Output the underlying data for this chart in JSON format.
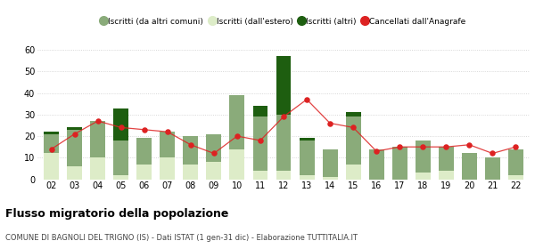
{
  "years": [
    "02",
    "03",
    "04",
    "05",
    "06",
    "07",
    "08",
    "09",
    "10",
    "11",
    "12",
    "13",
    "14",
    "15",
    "16",
    "17",
    "18",
    "19",
    "20",
    "21",
    "22"
  ],
  "iscritti_altri_comuni": [
    9,
    17,
    17,
    16,
    12,
    12,
    13,
    13,
    25,
    25,
    26,
    16,
    13,
    22,
    14,
    15,
    15,
    11,
    12,
    10,
    12
  ],
  "iscritti_estero": [
    12,
    6,
    10,
    2,
    7,
    10,
    7,
    8,
    14,
    4,
    4,
    2,
    1,
    7,
    0,
    0,
    3,
    4,
    0,
    0,
    2
  ],
  "iscritti_altri": [
    1,
    1,
    0,
    15,
    0,
    0,
    0,
    0,
    0,
    5,
    27,
    1,
    0,
    2,
    0,
    0,
    0,
    0,
    0,
    0,
    0
  ],
  "cancellati": [
    14,
    21,
    27,
    24,
    23,
    22,
    16,
    12,
    20,
    18,
    29,
    37,
    26,
    24,
    13,
    15,
    15,
    15,
    16,
    12,
    15
  ],
  "color_altri_comuni": "#8aab7a",
  "color_estero": "#ddecc8",
  "color_altri": "#1e5e10",
  "color_cancellati": "#dd2222",
  "title": "Flusso migratorio della popolazione",
  "subtitle": "COMUNE DI BAGNOLI DEL TRIGNO (IS) - Dati ISTAT (1 gen-31 dic) - Elaborazione TUTTITALIA.IT",
  "legend_labels": [
    "Iscritti (da altri comuni)",
    "Iscritti (dall'estero)",
    "Iscritti (altri)",
    "Cancellati dall'Anagrafe"
  ],
  "ylim": [
    0,
    60
  ],
  "yticks": [
    0,
    10,
    20,
    30,
    40,
    50,
    60
  ],
  "background_color": "#ffffff",
  "grid_color": "#cccccc"
}
